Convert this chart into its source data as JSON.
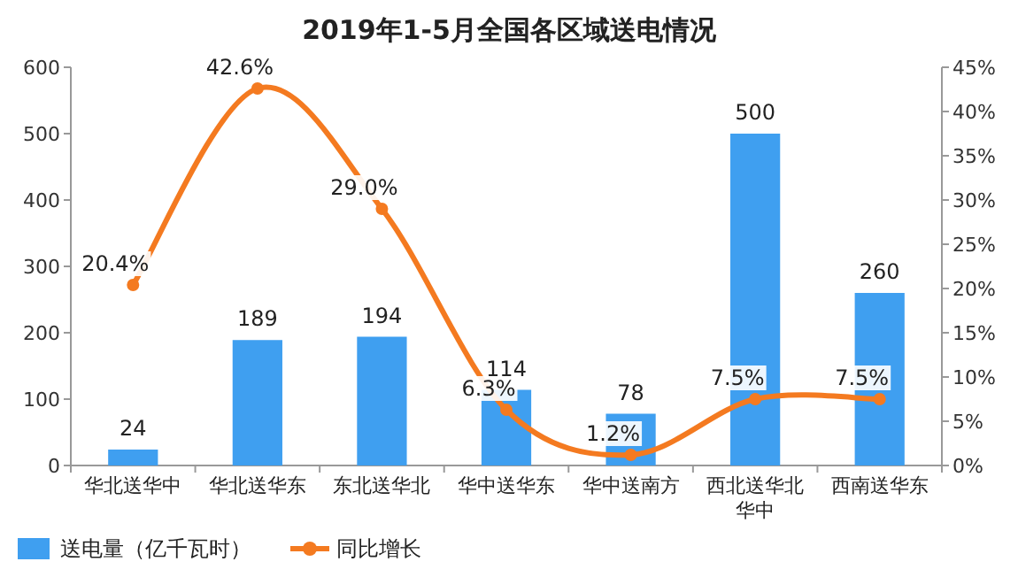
{
  "chart_data": {
    "type": "bar",
    "title": "2019年1-5月全国各区域送电情况",
    "categories": [
      "华北送华中",
      "华北送华东",
      "东北送华北",
      "华中送华东",
      "华中送南方",
      "西北送华北华中",
      "西南送华东"
    ],
    "series": [
      {
        "name": "送电量（亿千瓦时）",
        "color": "#3f9ff0",
        "values": [
          24,
          189,
          194,
          114,
          78,
          500,
          260
        ],
        "value_labels": [
          "24",
          "189",
          "194",
          "114",
          "78",
          "500",
          "260"
        ]
      },
      {
        "name": "同比增长",
        "type": "line",
        "axis": "y2",
        "color": "#f47a20",
        "marker": "circle",
        "values": [
          20.4,
          42.6,
          29.0,
          6.3,
          1.2,
          7.5,
          7.5
        ],
        "value_labels": [
          "20.4%",
          "42.6%",
          "29.0%",
          "6.3%",
          "1.2%",
          "7.5%",
          "7.5%"
        ]
      }
    ],
    "ylim": [
      0,
      600
    ],
    "yticks": [
      0,
      100,
      200,
      300,
      400,
      500,
      600
    ],
    "y2lim": [
      0,
      45
    ],
    "y2ticks": [
      {
        "value": 0,
        "label": "0%"
      },
      {
        "value": 5,
        "label": "5%"
      },
      {
        "value": 10,
        "label": "10%"
      },
      {
        "value": 15,
        "label": "15%"
      },
      {
        "value": 20,
        "label": "20%"
      },
      {
        "value": 25,
        "label": "25%"
      },
      {
        "value": 30,
        "label": "30%"
      },
      {
        "value": 35,
        "label": "35%"
      },
      {
        "value": 40,
        "label": "40%"
      },
      {
        "value": 45,
        "label": "45%"
      }
    ],
    "legend": "bottom left"
  }
}
